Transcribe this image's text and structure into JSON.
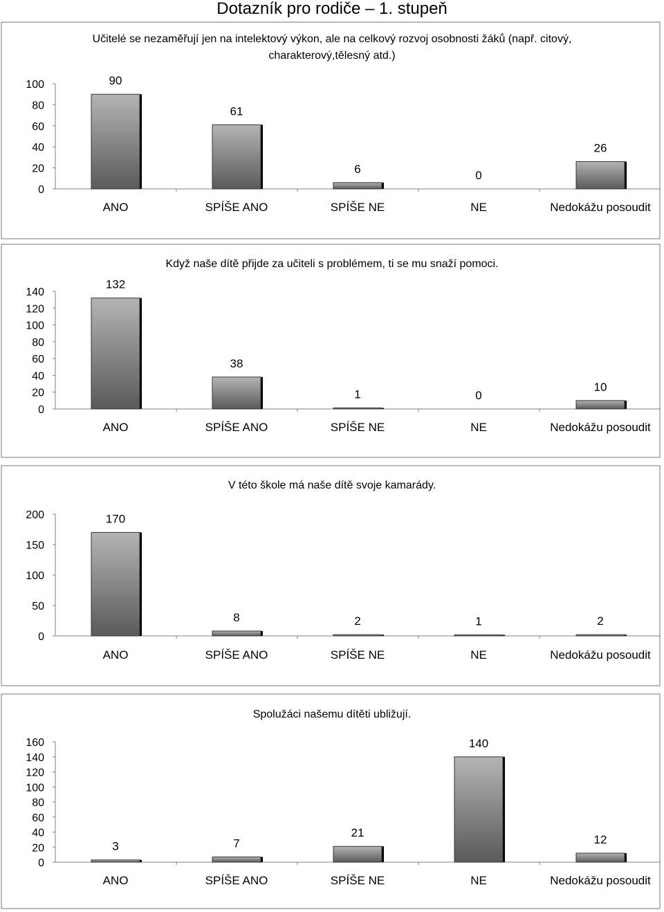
{
  "page_title": "Dotazník pro rodiče – 1. stupeň",
  "colors": {
    "bar_top": "#b4b4b4",
    "bar_bottom": "#5a5a5a",
    "bar_shadow": "#000000",
    "frame": "#777777"
  },
  "chart_data": [
    {
      "type": "bar",
      "title": "Učitelé se nezaměřují jen na intelektový výkon, ale na celkový rozvoj osobnosti žáků (např. citový,",
      "title_line2": "charakterový,tělesný atd.)",
      "categories": [
        "ANO",
        "SPÍŠE ANO",
        "SPÍŠE NE",
        "NE",
        "Nedokážu posoudit"
      ],
      "values": [
        90,
        61,
        6,
        0,
        26
      ],
      "value_labels": [
        "90",
        "61",
        "6",
        "0",
        "26"
      ],
      "yticks": [
        0,
        20,
        40,
        60,
        80,
        100
      ],
      "ytick_labels": [
        "0",
        "20",
        "40",
        "60",
        "80",
        "100"
      ],
      "ylim": [
        0,
        100
      ],
      "grid": false,
      "legend": "none"
    },
    {
      "type": "bar",
      "title": "Když naše dítě přijde za učiteli s problémem, ti se mu snaží pomoci.",
      "categories": [
        "ANO",
        "SPÍŠE ANO",
        "SPÍŠE NE",
        "NE",
        "Nedokážu posoudit"
      ],
      "values": [
        132,
        38,
        1,
        0,
        10
      ],
      "value_labels": [
        "132",
        "38",
        "1",
        "0",
        "10"
      ],
      "yticks": [
        0,
        20,
        40,
        60,
        80,
        100,
        120,
        140
      ],
      "ytick_labels": [
        "0",
        "20",
        "40",
        "60",
        "80",
        "100",
        "120",
        "140"
      ],
      "ylim": [
        0,
        140
      ],
      "grid": false,
      "legend": "none"
    },
    {
      "type": "bar",
      "title": "V této škole má naše dítě svoje kamarády.",
      "categories": [
        "ANO",
        "SPÍŠE ANO",
        "SPÍŠE NE",
        "NE",
        "Nedokážu posoudit"
      ],
      "values": [
        170,
        8,
        2,
        1,
        2
      ],
      "value_labels": [
        "170",
        "8",
        "2",
        "1",
        "2"
      ],
      "yticks": [
        0,
        50,
        100,
        150,
        200
      ],
      "ytick_labels": [
        "0",
        "50",
        "100",
        "150",
        "200"
      ],
      "ylim": [
        0,
        200
      ],
      "grid": false,
      "legend": "none"
    },
    {
      "type": "bar",
      "title": "Spolužáci našemu dítěti ubližují.",
      "categories": [
        "ANO",
        "SPÍŠE ANO",
        "SPÍŠE NE",
        "NE",
        "Nedokážu posoudit"
      ],
      "values": [
        3,
        7,
        21,
        140,
        12
      ],
      "value_labels": [
        "3",
        "7",
        "21",
        "140",
        "12"
      ],
      "yticks": [
        0,
        20,
        40,
        60,
        80,
        100,
        120,
        140,
        160
      ],
      "ytick_labels": [
        "0",
        "20",
        "40",
        "60",
        "80",
        "100",
        "120",
        "140",
        "160"
      ],
      "ylim": [
        0,
        160
      ],
      "grid": false,
      "legend": "none"
    }
  ]
}
